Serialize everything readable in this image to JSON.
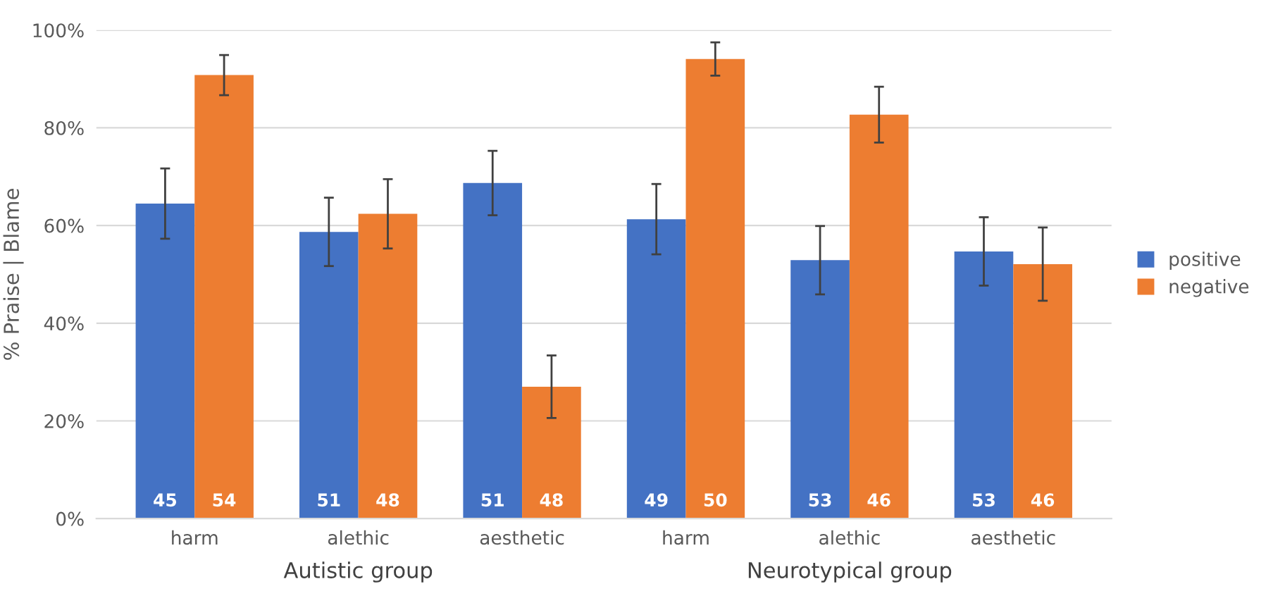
{
  "chart_data": {
    "type": "bar",
    "ylabel": "% Praise | Blame",
    "categories": [
      "harm",
      "alethic",
      "aesthetic",
      "harm",
      "alethic",
      "aesthetic"
    ],
    "series": [
      {
        "name": "positive",
        "color": "#4472c4",
        "values": [
          64.5,
          58.7,
          68.7,
          61.3,
          52.9,
          54.7
        ],
        "errors": [
          7.2,
          7,
          6.6,
          7.2,
          7,
          7
        ]
      },
      {
        "name": "negative",
        "color": "#ed7d31",
        "values": [
          90.8,
          62.4,
          27.0,
          94.1,
          82.7,
          52.1
        ],
        "errors": [
          4.1,
          7.1,
          6.4,
          3.4,
          5.7,
          7.5
        ]
      }
    ],
    "ylim": [
      0,
      100
    ],
    "yticks": [
      {
        "value": 0,
        "label": "0%"
      },
      {
        "value": 20,
        "label": "20%"
      },
      {
        "value": 40,
        "label": "40%"
      },
      {
        "value": 60,
        "label": "60%"
      },
      {
        "value": 80,
        "label": "80%"
      },
      {
        "value": 100,
        "label": "100%"
      }
    ],
    "annotations": [
      "45",
      "51",
      "51",
      "49",
      "53",
      "53",
      "54",
      "48",
      "48",
      "50",
      "46",
      "46",
      "Autistic group",
      "Neurotypical group"
    ],
    "grid": "y",
    "legend": "right"
  }
}
